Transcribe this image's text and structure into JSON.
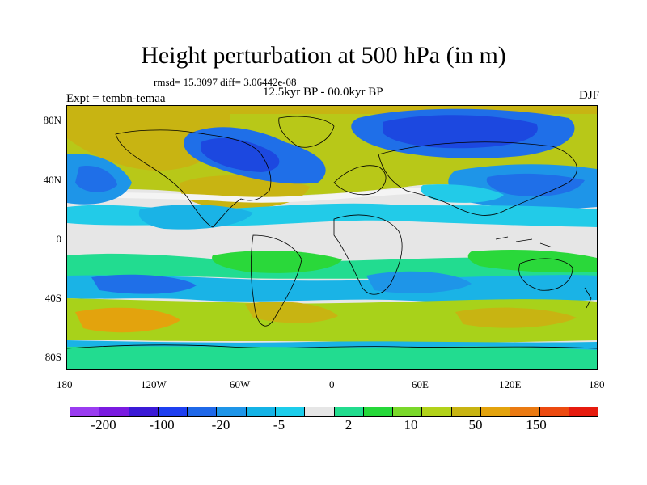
{
  "title": "Height perturbation at 500 hPa (in m)",
  "stats": "rmsd= 15.3097 diff= 3.06442e-08",
  "period": "12.5kyr BP - 00.0kyr BP",
  "experiment": "Expt = tembn-temaa",
  "season": "DJF",
  "lat_ticks": [
    "80N",
    "40N",
    "0",
    "40S",
    "80S"
  ],
  "lon_ticks": [
    "180",
    "120W",
    "60W",
    "0",
    "60E",
    "120E",
    "180"
  ],
  "colorbar": {
    "colors": [
      "#9a3cf0",
      "#7a1be0",
      "#3b1ad6",
      "#1e3ff0",
      "#1f68e8",
      "#1e95e8",
      "#14b3e6",
      "#1ccdeb",
      "#e6e6e6",
      "#22dc8e",
      "#26d83a",
      "#7ad82a",
      "#b2d21a",
      "#c8b412",
      "#e3a30d",
      "#ea7a12",
      "#ec4a10",
      "#e61b0e"
    ],
    "labels": [
      "-200",
      "-100",
      "-20",
      "-5",
      "2",
      "10",
      "50",
      "150"
    ]
  },
  "field_colors": {
    "strong_negative": "#1c48e0",
    "negative": "#1f6fe8",
    "weak_negative": "#1ab3e6",
    "slight_negative": "#22cbe8",
    "neutral": "#e6e6e6",
    "slight_positive": "#22dc90",
    "weak_positive": "#2ad83a",
    "positive": "#a8d21a",
    "strong_positive": "#c8b412",
    "peak_positive": "#e3a30d"
  }
}
